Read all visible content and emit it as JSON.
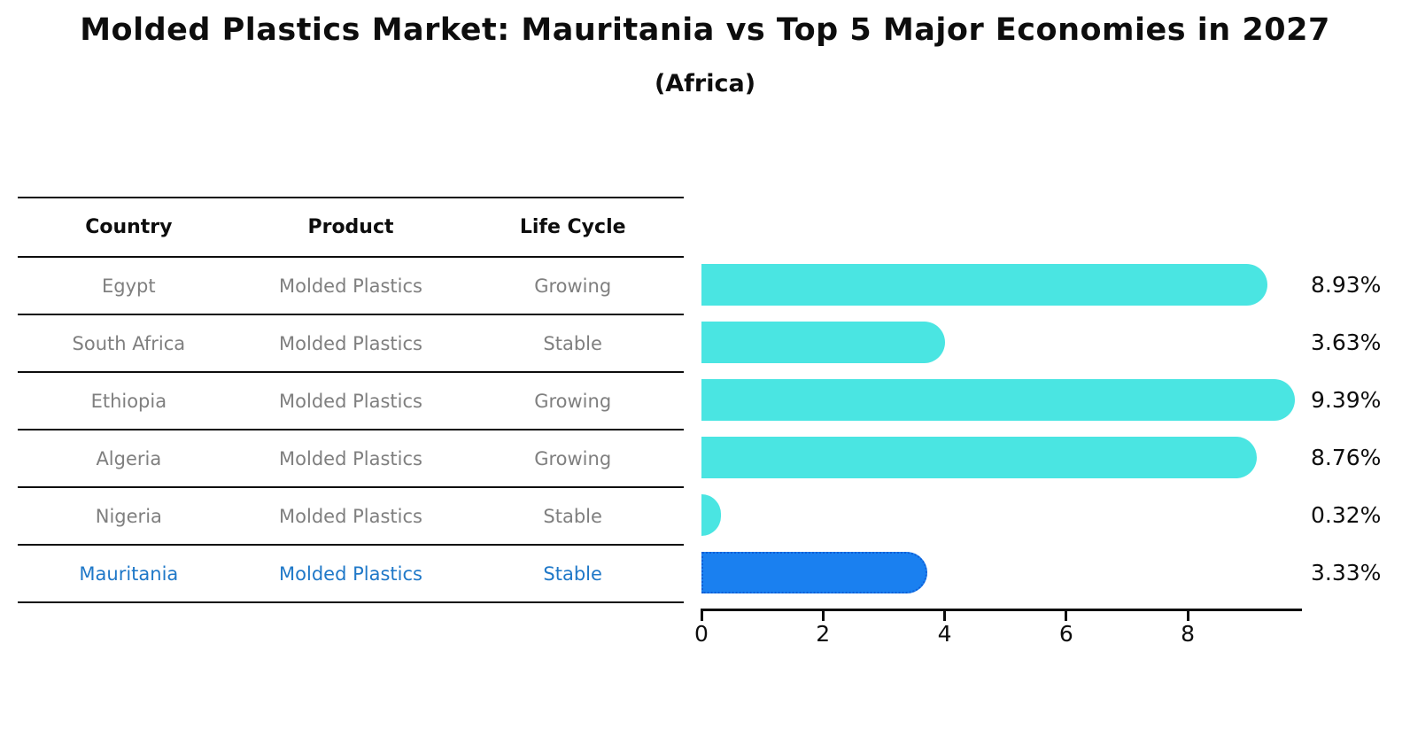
{
  "title": "Molded Plastics Market: Mauritania vs Top 5 Major Economies in 2027",
  "subtitle": "(Africa)",
  "table": {
    "headers": [
      "Country",
      "Product",
      "Life Cycle"
    ],
    "rows": [
      {
        "country": "Egypt",
        "product": "Molded Plastics",
        "life_cycle": "Growing",
        "highlight": false
      },
      {
        "country": "South Africa",
        "product": "Molded Plastics",
        "life_cycle": "Stable",
        "highlight": false
      },
      {
        "country": "Ethiopia",
        "product": "Molded Plastics",
        "life_cycle": "Growing",
        "highlight": false
      },
      {
        "country": "Algeria",
        "product": "Molded Plastics",
        "life_cycle": "Growing",
        "highlight": false
      },
      {
        "country": "Nigeria",
        "product": "Molded Plastics",
        "life_cycle": "Stable",
        "highlight": false
      },
      {
        "country": "Mauritania",
        "product": "Molded Plastics",
        "life_cycle": "Stable",
        "highlight": true
      }
    ]
  },
  "chart_data": {
    "type": "bar",
    "orientation": "horizontal",
    "categories": [
      "Egypt",
      "South Africa",
      "Ethiopia",
      "Algeria",
      "Nigeria",
      "Mauritania"
    ],
    "values": [
      8.93,
      3.63,
      9.39,
      8.76,
      0.32,
      3.33
    ],
    "value_labels": [
      "8.93%",
      "3.63%",
      "9.39%",
      "8.76%",
      "0.32%",
      "3.33%"
    ],
    "highlight_index": 5,
    "xticks": [
      0,
      2,
      4,
      6,
      8
    ],
    "xlim": [
      0,
      9.85
    ],
    "grid": false,
    "legend": "none",
    "bar_color": "#4ae5e2",
    "highlight_bar_color": "#1a80f0",
    "highlight_border_color": "#0f5fd7",
    "highlight_text_color": "#1f78c8"
  }
}
